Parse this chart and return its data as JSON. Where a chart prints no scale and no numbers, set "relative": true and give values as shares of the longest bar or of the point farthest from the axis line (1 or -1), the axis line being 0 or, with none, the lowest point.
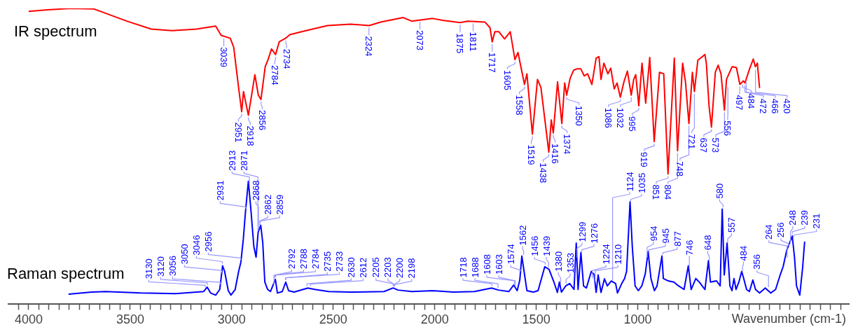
{
  "chart_data": {
    "type": "line",
    "relative": true,
    "marker": "none",
    "xlabel": "Wavenumber (cm-1)",
    "xlim": [
      4100,
      -40
    ],
    "xticks": [
      {
        "value": 4050,
        "label": null
      },
      4000,
      {
        "value": 3950,
        "label": null
      },
      {
        "value": 3900,
        "label": null
      },
      {
        "value": 3850,
        "label": null
      },
      {
        "value": 3800,
        "label": null
      },
      {
        "value": 3750,
        "label": null
      },
      {
        "value": 3700,
        "label": null
      },
      {
        "value": 3650,
        "label": null
      },
      {
        "value": 3600,
        "label": null
      },
      {
        "value": 3550,
        "label": null
      },
      3500,
      {
        "value": 3450,
        "label": null
      },
      {
        "value": 3400,
        "label": null
      },
      {
        "value": 3350,
        "label": null
      },
      {
        "value": 3300,
        "label": null
      },
      {
        "value": 3250,
        "label": null
      },
      {
        "value": 3200,
        "label": null
      },
      {
        "value": 3150,
        "label": null
      },
      {
        "value": 3100,
        "label": null
      },
      {
        "value": 3050,
        "label": null
      },
      3000,
      {
        "value": 2950,
        "label": null
      },
      {
        "value": 2900,
        "label": null
      },
      {
        "value": 2850,
        "label": null
      },
      {
        "value": 2800,
        "label": null
      },
      {
        "value": 2750,
        "label": null
      },
      {
        "value": 2700,
        "label": null
      },
      {
        "value": 2650,
        "label": null
      },
      {
        "value": 2600,
        "label": null
      },
      {
        "value": 2550,
        "label": null
      },
      2500,
      {
        "value": 2450,
        "label": null
      },
      {
        "value": 2400,
        "label": null
      },
      {
        "value": 2350,
        "label": null
      },
      {
        "value": 2300,
        "label": null
      },
      {
        "value": 2250,
        "label": null
      },
      {
        "value": 2200,
        "label": null
      },
      {
        "value": 2150,
        "label": null
      },
      {
        "value": 2100,
        "label": null
      },
      {
        "value": 2050,
        "label": null
      },
      2000,
      {
        "value": 1950,
        "label": null
      },
      {
        "value": 1900,
        "label": null
      },
      {
        "value": 1850,
        "label": null
      },
      {
        "value": 1800,
        "label": null
      },
      {
        "value": 1750,
        "label": null
      },
      {
        "value": 1700,
        "label": null
      },
      {
        "value": 1650,
        "label": null
      },
      {
        "value": 1600,
        "label": null
      },
      {
        "value": 1550,
        "label": null
      },
      1500,
      {
        "value": 1450,
        "label": null
      },
      {
        "value": 1400,
        "label": null
      },
      {
        "value": 1350,
        "label": null
      },
      {
        "value": 1300,
        "label": null
      },
      {
        "value": 1250,
        "label": null
      },
      {
        "value": 1200,
        "label": null
      },
      {
        "value": 1150,
        "label": null
      },
      {
        "value": 1100,
        "label": null
      },
      {
        "value": 1050,
        "label": null
      },
      1000,
      {
        "value": 950,
        "label": null
      },
      {
        "value": 900,
        "label": null
      },
      {
        "value": 850,
        "label": null
      },
      {
        "value": 800,
        "label": null
      },
      {
        "value": 750,
        "label": null
      },
      {
        "value": 700,
        "label": null
      },
      {
        "value": 650,
        "label": null
      },
      {
        "value": 600,
        "label": null
      },
      {
        "value": 550,
        "label": null
      },
      {
        "value": 500,
        "label": null
      },
      {
        "value": 450,
        "label": null
      },
      {
        "value": 400,
        "label": null
      },
      {
        "value": 350,
        "label": null
      },
      {
        "value": 300,
        "label": null
      },
      {
        "value": 250,
        "label": null
      },
      {
        "value": 200,
        "label": null
      },
      {
        "value": 150,
        "label": null
      },
      {
        "value": 100,
        "label": null
      },
      {
        "value": 50,
        "label": null
      },
      {
        "value": 0,
        "label": null
      }
    ],
    "series": [
      {
        "name": "IR spectrum",
        "color": "#ff0000",
        "x": [
          4000,
          3907,
          3793,
          3679,
          3638,
          3517,
          3397,
          3293,
          3173,
          3079,
          3052,
          3007,
          2990,
          2966,
          2951,
          2942,
          2918,
          2886,
          2869,
          2856,
          2835,
          2821,
          2804,
          2784,
          2766,
          2735,
          2714,
          2645,
          2528,
          2414,
          2323,
          2266,
          2155,
          2114,
          2011,
          1955,
          1875,
          1838,
          1753,
          1728,
          1717,
          1704,
          1684,
          1656,
          1628,
          1605,
          1590,
          1558,
          1546,
          1519,
          1494,
          1477,
          1438,
          1426,
          1416,
          1395,
          1374,
          1360,
          1350,
          1333,
          1316,
          1298,
          1281,
          1264,
          1247,
          1226,
          1205,
          1191,
          1181,
          1167,
          1147,
          1133,
          1116,
          1102,
          1086,
          1068,
          1051,
          1032,
          1020,
          1010,
          995,
          979,
          961,
          941,
          919,
          893,
          872,
          851,
          820,
          804,
          779,
          765,
          748,
          731,
          721,
          704,
          669,
          662,
          649,
          637,
          618,
          604,
          590,
          573,
          563,
          535,
          514,
          497,
          480,
          472,
          449,
          431,
          421,
          411,
          400
        ],
        "values": [
          0.99,
          0.995,
          1,
          0.998,
          0.988,
          0.957,
          0.93,
          0.925,
          0.93,
          0.94,
          0.909,
          0.899,
          0.868,
          0.731,
          0.651,
          0.719,
          0.639,
          0.776,
          0.707,
          0.692,
          0.803,
          0.827,
          0.863,
          0.844,
          0.887,
          0.899,
          0.911,
          0.923,
          0.942,
          0.947,
          0.942,
          0.954,
          0.969,
          0.957,
          0.966,
          0.959,
          0.952,
          0.957,
          0.954,
          0.935,
          0.887,
          0.921,
          0.921,
          0.897,
          0.921,
          0.827,
          0.851,
          0.743,
          0.779,
          0.575,
          0.76,
          0.733,
          0.514,
          0.623,
          0.579,
          0.752,
          0.611,
          0.748,
          0.707,
          0.764,
          0.791,
          0.796,
          0.796,
          0.772,
          0.779,
          0.743,
          0.832,
          0.837,
          0.76,
          0.815,
          0.779,
          0.798,
          0.728,
          0.748,
          0.7,
          0.752,
          0.788,
          0.707,
          0.76,
          0.776,
          0.671,
          0.815,
          0.68,
          0.834,
          0.55,
          0.784,
          0.779,
          0.44,
          0.832,
          0.519,
          0.815,
          0.752,
          0.611,
          0.784,
          0.719,
          0.825,
          0.844,
          0.813,
          0.671,
          0.599,
          0.784,
          0.808,
          0.779,
          0.656,
          0.76,
          0.803,
          0.8,
          0.743,
          0.755,
          0.748,
          0.796,
          0.829,
          0.803,
          0.815,
          0.731
        ]
      },
      {
        "name": "Raman spectrum",
        "color": "#0000ff",
        "x": [
          3804,
          3690,
          3621,
          3448,
          3276,
          3138,
          3121,
          3104,
          3079,
          3059,
          3045,
          3035,
          3017,
          3004,
          2983,
          2966,
          2955,
          2943,
          2932,
          2918,
          2905,
          2891,
          2880,
          2870,
          2857,
          2847,
          2837,
          2823,
          2809,
          2785,
          2775,
          2751,
          2734,
          2720,
          2693,
          2625,
          2590,
          2522,
          2420,
          2250,
          2205,
          2181,
          2113,
          2010,
          1908,
          1805,
          1720,
          1686,
          1635,
          1611,
          1594,
          1581,
          1571,
          1560,
          1546,
          1515,
          1491,
          1458,
          1437,
          1413,
          1396,
          1386,
          1376,
          1355,
          1335,
          1314,
          1303,
          1294,
          1280,
          1267,
          1253,
          1229,
          1215,
          1205,
          1195,
          1181,
          1164,
          1150,
          1130,
          1109,
          1100,
          1079,
          1065,
          1055,
          1038,
          1027,
          1013,
          997,
          980,
          963,
          949,
          935,
          918,
          905,
          881,
          874,
          850,
          822,
          799,
          772,
          751,
          737,
          714,
          697,
          669,
          652,
          642,
          612,
          594,
          584,
          574,
          560,
          546,
          536,
          526,
          516,
          502,
          488,
          478,
          464,
          450,
          433,
          420,
          400,
          372,
          345,
          321,
          301,
          284,
          266,
          252,
          239,
          228,
          218,
          202,
          188,
          178
        ],
        "values": [
          0.034,
          0.041,
          0.043,
          0.038,
          0.036,
          0.043,
          0.058,
          0.038,
          0.031,
          0.05,
          0.13,
          0.111,
          0.046,
          0.031,
          0.05,
          0.111,
          0.142,
          0.219,
          0.315,
          0.416,
          0.315,
          0.195,
          0.159,
          0.243,
          0.267,
          0.207,
          0.075,
          0.05,
          0.043,
          0.084,
          0.038,
          0.043,
          0.075,
          0.046,
          0.041,
          0.055,
          0.05,
          0.043,
          0.041,
          0.043,
          0.055,
          0.048,
          0.043,
          0.046,
          0.041,
          0.043,
          0.055,
          0.048,
          0.043,
          0.065,
          0.046,
          0.082,
          0.163,
          0.111,
          0.046,
          0.041,
          0.046,
          0.127,
          0.118,
          0.075,
          0.04,
          0.075,
          0.041,
          0.062,
          0.07,
          0.05,
          0.207,
          0.05,
          0.175,
          0.062,
          0.055,
          0.111,
          0.1,
          0.04,
          0.099,
          0.04,
          0.086,
          0.062,
          0.079,
          0.07,
          0.038,
          0.07,
          0.087,
          0.111,
          0.346,
          0.195,
          0.062,
          0.046,
          0.062,
          0.103,
          0.178,
          0.087,
          0.046,
          0.062,
          0.163,
          0.087,
          0.079,
          0.075,
          0.062,
          0.05,
          0.13,
          0.05,
          0.087,
          0.075,
          0.05,
          0.147,
          0.075,
          0.079,
          0.062,
          0.322,
          0.099,
          0.207,
          0.062,
          0.046,
          0.087,
          0.05,
          0.075,
          0.111,
          0.087,
          0.05,
          0.043,
          0.082,
          0.05,
          0.038,
          0.055,
          0.038,
          0.05,
          0.094,
          0.127,
          0.183,
          0.207,
          0.231,
          0.159,
          0.062,
          0.031,
          0.123,
          0.212
        ]
      }
    ],
    "annotations": [
      {
        "text": "3039",
        "x": 3039,
        "y": 0.905
      },
      {
        "text": "2951",
        "x": 2951,
        "y": 0.651
      },
      {
        "text": "2918",
        "x": 2918,
        "y": 0.639
      },
      {
        "text": "2856",
        "x": 2856,
        "y": 0.692
      },
      {
        "text": "2784",
        "x": 2784,
        "y": 0.844
      },
      {
        "text": "2734",
        "x": 2734,
        "y": 0.899
      },
      {
        "text": "2324",
        "x": 2324,
        "y": 0.942
      },
      {
        "text": "2073",
        "x": 2073,
        "y": 0.962
      },
      {
        "text": "1875",
        "x": 1875,
        "y": 0.952
      },
      {
        "text": "1811",
        "x": 1811,
        "y": 0.956
      },
      {
        "text": "1717",
        "x": 1717,
        "y": 0.887
      },
      {
        "text": "1605",
        "x": 1605,
        "y": 0.827
      },
      {
        "text": "1558",
        "x": 1558,
        "y": 0.743
      },
      {
        "text": "1519",
        "x": 1519,
        "y": 0.575
      },
      {
        "text": "1438",
        "x": 1438,
        "y": 0.514
      },
      {
        "text": "1416",
        "x": 1416,
        "y": 0.579
      },
      {
        "text": "1374",
        "x": 1374,
        "y": 0.611
      },
      {
        "text": "1350",
        "x": 1350,
        "y": 0.707
      },
      {
        "text": "1086",
        "x": 1086,
        "y": 0.7
      },
      {
        "text": "1032",
        "x": 1032,
        "y": 0.707
      },
      {
        "text": "995",
        "x": 995,
        "y": 0.671
      },
      {
        "text": "919",
        "x": 919,
        "y": 0.55
      },
      {
        "text": "851",
        "x": 851,
        "y": 0.44
      },
      {
        "text": "804",
        "x": 804,
        "y": 0.519
      },
      {
        "text": "748",
        "x": 748,
        "y": 0.611
      },
      {
        "text": "721",
        "x": 721,
        "y": 0.719
      },
      {
        "text": "637",
        "x": 637,
        "y": 0.599
      },
      {
        "text": "573",
        "x": 573,
        "y": 0.656
      },
      {
        "text": "556",
        "x": 556,
        "y": 0.74
      },
      {
        "text": "497",
        "x": 497,
        "y": 0.743
      },
      {
        "text": "484",
        "x": 484,
        "y": 0.75
      },
      {
        "text": "472",
        "x": 472,
        "y": 0.748
      },
      {
        "text": "466",
        "x": 466,
        "y": 0.76
      },
      {
        "text": "420",
        "x": 420,
        "y": 0.8
      },
      {
        "text": "3130",
        "x": 3130,
        "y": 0.05
      },
      {
        "text": "3120",
        "x": 3120,
        "y": 0.058
      },
      {
        "text": "3056",
        "x": 3056,
        "y": 0.06
      },
      {
        "text": "3050",
        "x": 3050,
        "y": 0.1
      },
      {
        "text": "3046",
        "x": 3046,
        "y": 0.13
      },
      {
        "text": "2956",
        "x": 2956,
        "y": 0.142
      },
      {
        "text": "2931",
        "x": 2931,
        "y": 0.315
      },
      {
        "text": "2913",
        "x": 2913,
        "y": 0.4
      },
      {
        "text": "2871",
        "x": 2871,
        "y": 0.24
      },
      {
        "text": "2868",
        "x": 2868,
        "y": 0.25
      },
      {
        "text": "2862",
        "x": 2862,
        "y": 0.26
      },
      {
        "text": "2859",
        "x": 2859,
        "y": 0.267
      },
      {
        "text": "2792",
        "x": 2792,
        "y": 0.06
      },
      {
        "text": "2788",
        "x": 2788,
        "y": 0.08
      },
      {
        "text": "2784",
        "x": 2784,
        "y": 0.084
      },
      {
        "text": "2735",
        "x": 2735,
        "y": 0.075
      },
      {
        "text": "2733",
        "x": 2733,
        "y": 0.075
      },
      {
        "text": "2630",
        "x": 2630,
        "y": 0.055
      },
      {
        "text": "2612",
        "x": 2612,
        "y": 0.054
      },
      {
        "text": "2205",
        "x": 2205,
        "y": 0.055
      },
      {
        "text": "2203",
        "x": 2203,
        "y": 0.055
      },
      {
        "text": "2200",
        "x": 2200,
        "y": 0.053
      },
      {
        "text": "2198",
        "x": 2198,
        "y": 0.052
      },
      {
        "text": "1718",
        "x": 1718,
        "y": 0.055
      },
      {
        "text": "1688",
        "x": 1688,
        "y": 0.048
      },
      {
        "text": "1608",
        "x": 1608,
        "y": 0.06
      },
      {
        "text": "1603",
        "x": 1603,
        "y": 0.055
      },
      {
        "text": "1574",
        "x": 1574,
        "y": 0.1
      },
      {
        "text": "1562",
        "x": 1562,
        "y": 0.16
      },
      {
        "text": "1456",
        "x": 1456,
        "y": 0.127
      },
      {
        "text": "1439",
        "x": 1439,
        "y": 0.118
      },
      {
        "text": "1380",
        "x": 1380,
        "y": 0.06
      },
      {
        "text": "1353",
        "x": 1353,
        "y": 0.062
      },
      {
        "text": "1299",
        "x": 1299,
        "y": 0.15
      },
      {
        "text": "1276",
        "x": 1276,
        "y": 0.17
      },
      {
        "text": "1224",
        "x": 1224,
        "y": 0.08
      },
      {
        "text": "1210",
        "x": 1210,
        "y": 0.07
      },
      {
        "text": "1124",
        "x": 1124,
        "y": 0.075
      },
      {
        "text": "1035",
        "x": 1035,
        "y": 0.34
      },
      {
        "text": "954",
        "x": 954,
        "y": 0.15
      },
      {
        "text": "945",
        "x": 945,
        "y": 0.17
      },
      {
        "text": "877",
        "x": 877,
        "y": 0.16
      },
      {
        "text": "746",
        "x": 746,
        "y": 0.12
      },
      {
        "text": "648",
        "x": 648,
        "y": 0.14
      },
      {
        "text": "580",
        "x": 580,
        "y": 0.32
      },
      {
        "text": "557",
        "x": 557,
        "y": 0.2
      },
      {
        "text": "484",
        "x": 484,
        "y": 0.1
      },
      {
        "text": "356",
        "x": 356,
        "y": 0.05
      },
      {
        "text": "264",
        "x": 264,
        "y": 0.15
      },
      {
        "text": "256",
        "x": 256,
        "y": 0.19
      },
      {
        "text": "248",
        "x": 248,
        "y": 0.2
      },
      {
        "text": "239",
        "x": 239,
        "y": 0.23
      },
      {
        "text": "231",
        "x": 231,
        "y": 0.22
      }
    ]
  }
}
